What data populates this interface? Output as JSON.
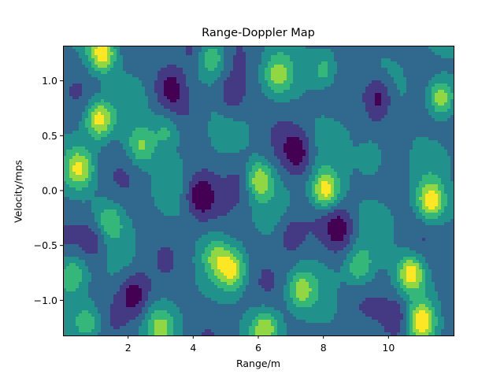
{
  "chart_data": {
    "type": "heatmap",
    "title": "Range-Doppler Map",
    "xlabel": "Range/m",
    "ylabel": "Velocity/mps",
    "xlim": [
      0.0,
      12.0
    ],
    "ylim": [
      -1.32,
      1.32
    ],
    "xticks": [
      2,
      4,
      6,
      8,
      10
    ],
    "xtick_labels": [
      "2",
      "4",
      "6",
      "8",
      "10"
    ],
    "yticks": [
      -1.0,
      -0.5,
      0.0,
      0.5,
      1.0
    ],
    "ytick_labels": [
      "−1.0",
      "−0.5",
      "0.0",
      "0.5",
      "1.0"
    ],
    "plot_style": "filled contour",
    "colormap": "viridis",
    "levels": 7,
    "colors": [
      "#440154",
      "#443983",
      "#31688e",
      "#21918c",
      "#35b779",
      "#90d743",
      "#fde725"
    ],
    "grid": false,
    "peaks": [
      {
        "x": 1.2,
        "y": 1.25,
        "value": 0.95
      },
      {
        "x": 1.1,
        "y": 0.65,
        "value": 0.95
      },
      {
        "x": 0.5,
        "y": 0.2,
        "value": 0.7
      },
      {
        "x": 2.4,
        "y": 0.4,
        "value": 0.6
      },
      {
        "x": 1.4,
        "y": -0.28,
        "value": 0.55
      },
      {
        "x": 6.0,
        "y": 0.1,
        "value": 0.85
      },
      {
        "x": 8.05,
        "y": 0.0,
        "value": 1.0
      },
      {
        "x": 8.05,
        "y": 1.1,
        "value": 0.55
      },
      {
        "x": 5.2,
        "y": -0.72,
        "value": 0.8
      },
      {
        "x": 10.7,
        "y": -0.75,
        "value": 1.0
      },
      {
        "x": 11.3,
        "y": -0.1,
        "value": 0.95
      },
      {
        "x": 11.6,
        "y": 0.85,
        "value": 0.9
      },
      {
        "x": 11.0,
        "y": -1.2,
        "value": 0.9
      },
      {
        "x": 6.2,
        "y": -1.25,
        "value": 0.7
      },
      {
        "x": 9.1,
        "y": -0.7,
        "value": 0.55
      },
      {
        "x": 3.0,
        "y": -1.25,
        "value": 0.5
      },
      {
        "x": 0.3,
        "y": -0.75,
        "value": 0.55
      },
      {
        "x": 6.6,
        "y": 1.05,
        "value": 0.55
      },
      {
        "x": 4.6,
        "y": 1.2,
        "value": 0.55
      },
      {
        "x": 7.3,
        "y": -0.9,
        "value": 0.6
      },
      {
        "x": 3.2,
        "y": 0.55,
        "value": 0.45
      },
      {
        "x": 9.5,
        "y": 0.3,
        "value": 0.45
      },
      {
        "x": 4.7,
        "y": -0.6,
        "value": 0.45
      },
      {
        "x": 0.8,
        "y": -1.2,
        "value": 0.5
      }
    ],
    "troughs": [
      {
        "x": 4.2,
        "y": -0.05,
        "value": -0.65
      },
      {
        "x": 3.3,
        "y": 0.95,
        "value": -0.5
      },
      {
        "x": 9.7,
        "y": 0.85,
        "value": -0.65
      },
      {
        "x": 2.2,
        "y": -0.95,
        "value": -0.6
      },
      {
        "x": 7.2,
        "y": 0.35,
        "value": -0.55
      },
      {
        "x": 8.5,
        "y": -0.35,
        "value": -0.5
      },
      {
        "x": 5.2,
        "y": 0.85,
        "value": -0.4
      },
      {
        "x": 1.0,
        "y": -0.45,
        "value": -0.4
      },
      {
        "x": 10.3,
        "y": -1.15,
        "value": -0.45
      },
      {
        "x": 3.9,
        "y": 1.3,
        "value": -0.45
      },
      {
        "x": 5.6,
        "y": 0.1,
        "value": -0.3
      },
      {
        "x": 7.0,
        "y": -0.4,
        "value": -0.35
      }
    ]
  }
}
